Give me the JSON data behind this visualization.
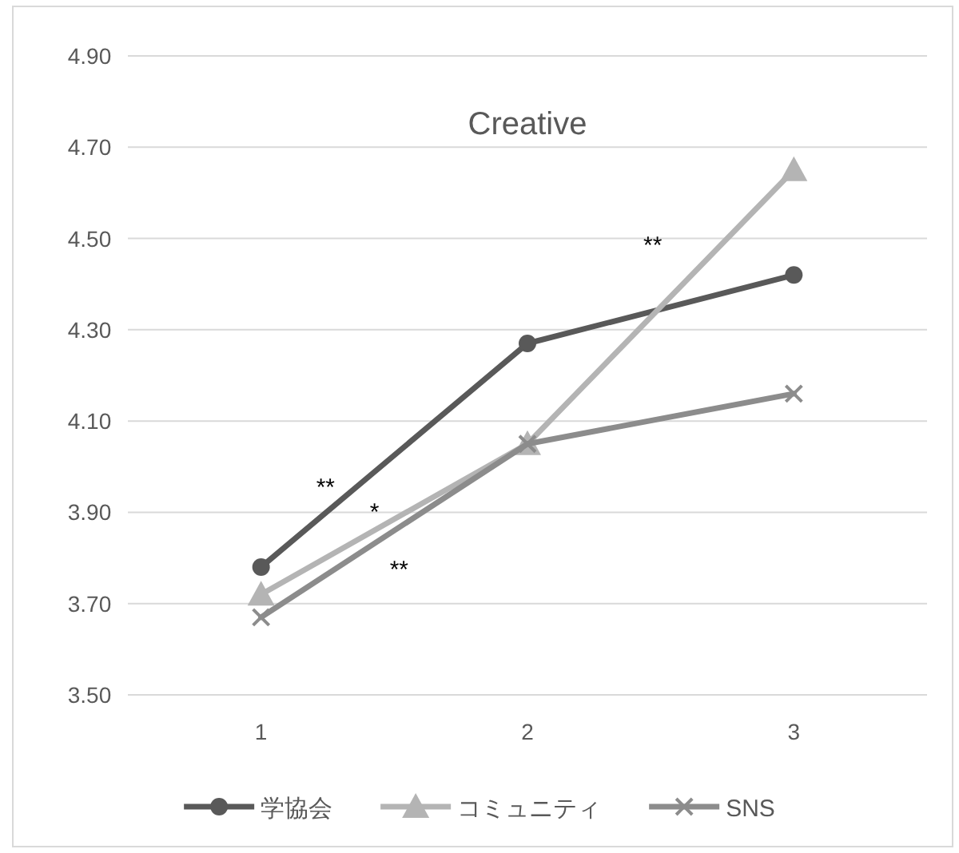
{
  "chart_data": {
    "type": "line",
    "title": "Creative",
    "x": [
      1,
      2,
      3
    ],
    "xlim": [
      0.5,
      3.5
    ],
    "xticks": [
      1,
      2,
      3
    ],
    "ylim": [
      3.5,
      4.9
    ],
    "yticks": [
      {
        "value": 3.5,
        "label": "3.50"
      },
      {
        "value": 3.7,
        "label": "3.70"
      },
      {
        "value": 3.9,
        "label": "3.90"
      },
      {
        "value": 4.1,
        "label": "4.10"
      },
      {
        "value": 4.3,
        "label": "4.30"
      },
      {
        "value": 4.5,
        "label": "4.50"
      },
      {
        "value": 4.7,
        "label": "4.70"
      },
      {
        "value": 4.9,
        "label": "4.90"
      }
    ],
    "grid": "y",
    "legend": "bottom",
    "line_style": "solid",
    "series": [
      {
        "name": "学協会",
        "color": "#595959",
        "marker": "circle",
        "values": [
          3.78,
          4.27,
          4.42
        ]
      },
      {
        "name": "コミュニティ",
        "color": "#b4b4b4",
        "marker": "triangle",
        "values": [
          3.72,
          4.05,
          4.65
        ]
      },
      {
        "name": "SNS",
        "color": "#8c8c8c",
        "marker": "cross",
        "values": [
          3.67,
          4.05,
          4.16
        ]
      }
    ],
    "annotations": [
      "**",
      "*",
      "**",
      "**"
    ]
  }
}
